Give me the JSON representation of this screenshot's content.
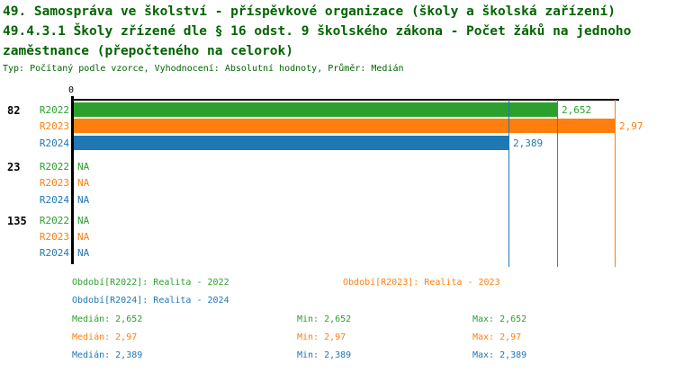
{
  "header": {
    "title_line1": "49. Samospráva ve školství - příspěvkové organizace (školy a školská zařízení)",
    "title_line2": "49.4.3.1 Školy zřízené dle § 16 odst. 9 školského zákona - Počet žáků na jednoho",
    "title_line3": "zaměstnance (přepočteného na celorok)",
    "subtitle": "Typ: Počítaný podle vzorce, Vyhodnocení: Absolutní hodnoty, Průměr: Medián"
  },
  "colors": {
    "title_green": "#006400",
    "series_green": "#2ca02c",
    "series_orange": "#ff7f0e",
    "series_blue": "#1f77b4",
    "axis_black": "#000000"
  },
  "chart_data": {
    "type": "bar",
    "orientation": "horizontal",
    "axis": {
      "origin_label": "0",
      "xmin": 0,
      "xmax": 3.0,
      "grid": false
    },
    "series": [
      {
        "name": "R2022",
        "color": "#2ca02c",
        "legend": "Realita - 2022"
      },
      {
        "name": "R2023",
        "color": "#ff7f0e",
        "legend": "Realita - 2023"
      },
      {
        "name": "R2024",
        "color": "#1f77b4",
        "legend": "Realita - 2024"
      }
    ],
    "categories": [
      "82",
      "23",
      "135"
    ],
    "rows": [
      {
        "category": "82",
        "values": [
          {
            "series": "R2022",
            "value": 2.652,
            "label": "2,652"
          },
          {
            "series": "R2023",
            "value": 2.97,
            "label": "2,97"
          },
          {
            "series": "R2024",
            "value": 2.389,
            "label": "2,389"
          }
        ]
      },
      {
        "category": "23",
        "values": [
          {
            "series": "R2022",
            "value": null,
            "label": "NA"
          },
          {
            "series": "R2023",
            "value": null,
            "label": "NA"
          },
          {
            "series": "R2024",
            "value": null,
            "label": "NA"
          }
        ]
      },
      {
        "category": "135",
        "values": [
          {
            "series": "R2022",
            "value": null,
            "label": "NA"
          },
          {
            "series": "R2023",
            "value": null,
            "label": "NA"
          },
          {
            "series": "R2024",
            "value": null,
            "label": "NA"
          }
        ]
      }
    ],
    "median_markers": [
      {
        "series": "R2022",
        "value": 2.652
      },
      {
        "series": "R2023",
        "value": 2.97
      },
      {
        "series": "R2024",
        "value": 2.389
      }
    ]
  },
  "legend": {
    "items": [
      {
        "label": "Období[R2022]: Realita - 2022",
        "series": "R2022",
        "color": "#2ca02c"
      },
      {
        "label": "Období[R2023]: Realita - 2023",
        "series": "R2023",
        "color": "#ff7f0e"
      },
      {
        "label": "Období[R2024]: Realita - 2024",
        "series": "R2024",
        "color": "#1f77b4"
      }
    ]
  },
  "stats": {
    "rows": [
      {
        "series": "R2022",
        "color": "#2ca02c",
        "median": "Medián: 2,652",
        "min": "Min: 2,652",
        "max": "Max: 2,652"
      },
      {
        "series": "R2023",
        "color": "#ff7f0e",
        "median": "Medián: 2,97",
        "min": "Min: 2,97",
        "max": "Max: 2,97"
      },
      {
        "series": "R2024",
        "color": "#1f77b4",
        "median": "Medián: 2,389",
        "min": "Min: 2,389",
        "max": "Max: 2,389"
      }
    ]
  }
}
